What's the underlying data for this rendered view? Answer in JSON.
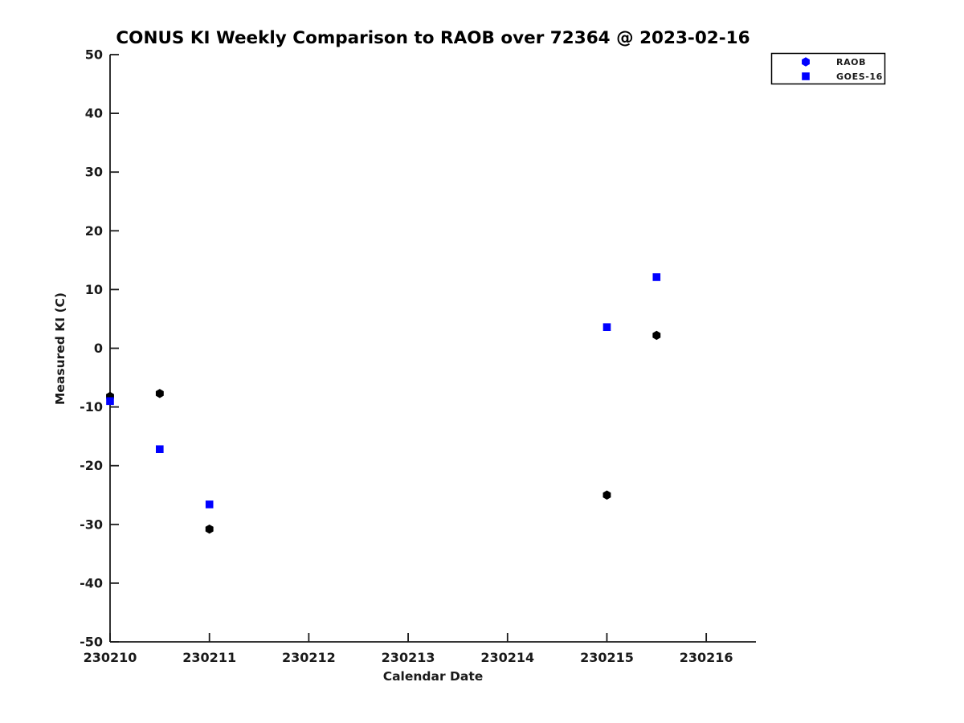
{
  "chart_data": {
    "type": "scatter",
    "title": "CONUS KI Weekly Comparison to RAOB over 72364 @ 2023-02-16",
    "xlabel": "Calendar Date",
    "ylabel": "Measured KI (C)",
    "xlim": [
      230210,
      230216.5
    ],
    "ylim": [
      -50,
      50
    ],
    "xticks": [
      230210,
      230211,
      230212,
      230213,
      230214,
      230215,
      230216
    ],
    "xticklabels": [
      "230210",
      "230211",
      "230212",
      "230213",
      "230214",
      "230215",
      "230216"
    ],
    "yticks": [
      -50,
      -40,
      -30,
      -20,
      -10,
      0,
      10,
      20,
      30,
      40,
      50
    ],
    "yticklabels": [
      "-50",
      "-40",
      "-30",
      "-20",
      "-10",
      "0",
      "10",
      "20",
      "30",
      "40",
      "50"
    ],
    "grid": false,
    "axis_color": "#1a1a1a",
    "background_color": "#ffffff",
    "legend": {
      "position": "top-right",
      "entries": [
        {
          "label": "RAOB",
          "marker": "hexagon",
          "marker_color": "#0000ff"
        },
        {
          "label": "GOES-16",
          "marker": "square",
          "marker_color": "#0000ff"
        }
      ]
    },
    "series": [
      {
        "name": "RAOB",
        "marker": "hexagon",
        "color": "#000000",
        "points": [
          [
            230210.0,
            -8.2
          ],
          [
            230210.5,
            -7.7
          ],
          [
            230211.0,
            -30.8
          ],
          [
            230215.0,
            -25.0
          ],
          [
            230215.5,
            2.2
          ]
        ]
      },
      {
        "name": "GOES-16",
        "marker": "square",
        "color": "#0000ff",
        "points": [
          [
            230210.0,
            -9.0
          ],
          [
            230210.5,
            -17.2
          ],
          [
            230211.0,
            -26.6
          ],
          [
            230215.0,
            3.6
          ],
          [
            230215.5,
            12.1
          ]
        ]
      }
    ]
  }
}
